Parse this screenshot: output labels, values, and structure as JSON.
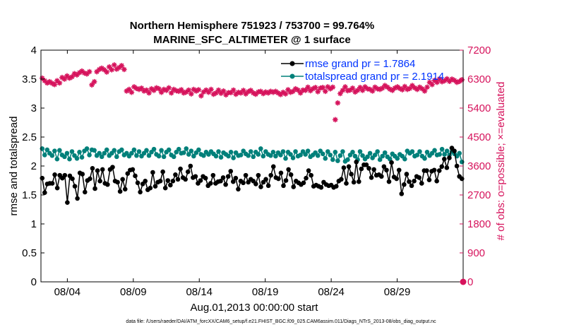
{
  "chart_data": {
    "type": "line",
    "title": "Northern Hemisphere 751923 / 753700 = 99.764%",
    "subtitle": "MARINE_SFC_ALTIMETER @ 1 surface",
    "xlabel": "Aug.01,2013 00:00:00 start",
    "ylabel_left": "rmse and totalspread",
    "ylabel_right": "# of obs: o=possible; ×=evaluated",
    "footnote": "data file: /Users/raeder/DAI/ATM_forcXX/CAM6_setup/f.e21.FHIST_BGC.f09_025.CAM6assim.011/Diags_NTrS_2013-08/obs_diag_output.nc",
    "xlim": [
      1,
      33
    ],
    "ylim_left": [
      0,
      4
    ],
    "ylim_right": [
      0,
      7200
    ],
    "x_ticks": [
      3,
      8,
      13,
      18,
      23,
      28
    ],
    "x_tick_labels": [
      "08/04",
      "08/09",
      "08/14",
      "08/19",
      "08/24",
      "08/29"
    ],
    "y_ticks_left": [
      0,
      0.5,
      1,
      1.5,
      2,
      2.5,
      3,
      3.5,
      4
    ],
    "y_tick_labels_left": [
      "0",
      "0.5",
      "1",
      "1.5",
      "2",
      "2.5",
      "3",
      "3.5",
      "4"
    ],
    "y_ticks_right": [
      0,
      900,
      1800,
      2700,
      3600,
      4500,
      5400,
      6300,
      7200
    ],
    "y_tick_labels_right": [
      "0",
      "900",
      "1800",
      "2700",
      "3600",
      "4500",
      "5400",
      "6300",
      "7200"
    ],
    "grid": false,
    "legend_position": "top-right",
    "colors": {
      "rmse": "#000000",
      "spread": "#00807a",
      "obs": "#d6135c",
      "legend_text": "#0033ff"
    },
    "series": [
      {
        "name": "rmse grand pr = 1.7864",
        "axis": "left",
        "values": [
          1.79,
          1.54,
          1.69,
          1.7,
          1.7,
          1.85,
          1.62,
          1.84,
          1.79,
          1.84,
          1.37,
          1.83,
          1.78,
          1.65,
          1.44,
          1.88,
          1.86,
          1.55,
          1.75,
          1.78,
          1.96,
          1.61,
          1.92,
          1.74,
          1.94,
          1.7,
          1.68,
          1.94,
          1.98,
          1.74,
          1.72,
          1.56,
          1.77,
          1.6,
          1.87,
          1.93,
          1.94,
          1.83,
          1.71,
          1.55,
          1.69,
          1.74,
          1.59,
          1.62,
          1.89,
          1.65,
          1.72,
          1.74,
          1.9,
          1.62,
          1.75,
          1.67,
          1.74,
          1.85,
          1.77,
          1.95,
          1.8,
          1.77,
          1.9,
          2.0,
          1.8,
          1.82,
          1.7,
          1.75,
          1.82,
          1.79,
          1.66,
          1.7,
          1.84,
          1.7,
          1.73,
          1.74,
          1.8,
          1.68,
          1.82,
          1.91,
          1.73,
          1.79,
          1.6,
          1.74,
          1.71,
          1.84,
          1.72,
          1.77,
          1.74,
          1.69,
          1.84,
          1.64,
          1.72,
          1.77,
          1.66,
          1.84,
          1.99,
          1.8,
          1.78,
          1.88,
          1.66,
          1.75,
          1.94,
          1.85,
          1.64,
          1.74,
          1.71,
          1.68,
          1.71,
          1.79,
          1.92,
          1.84,
          1.65,
          1.67,
          1.65,
          1.63,
          1.72,
          1.68,
          1.66,
          1.67,
          1.63,
          1.65,
          1.74,
          1.77,
          1.97,
          1.7,
          1.99,
          1.86,
          1.72,
          2.07,
          1.73,
          1.95,
          2.02,
          2.02,
          1.96,
          1.8,
          1.94,
          1.84,
          1.85,
          1.82,
          1.99,
          1.93,
          1.73,
          2.06,
          1.81,
          1.78,
          1.93,
          1.52,
          1.68,
          1.86,
          1.73,
          1.66,
          1.74,
          1.82,
          1.8,
          1.7,
          1.92,
          1.92,
          1.76,
          1.91,
          1.93,
          1.74,
          1.92,
          1.99,
          2.12,
          1.97,
          2.14,
          2.31,
          2.26,
          2.0,
          1.82,
          1.78
        ]
      },
      {
        "name": "totalspread grand pr = 2.1914",
        "axis": "left",
        "values": [
          2.3,
          2.19,
          2.28,
          2.22,
          2.18,
          2.26,
          2.12,
          2.27,
          2.19,
          2.16,
          2.22,
          2.12,
          2.25,
          2.18,
          2.13,
          2.24,
          2.15,
          2.26,
          2.3,
          2.19,
          2.28,
          2.27,
          2.18,
          2.22,
          2.16,
          2.22,
          2.28,
          2.18,
          2.22,
          2.27,
          2.16,
          2.25,
          2.28,
          2.19,
          2.22,
          2.17,
          2.22,
          2.28,
          2.18,
          2.25,
          2.17,
          2.22,
          2.27,
          2.18,
          2.24,
          2.29,
          2.2,
          2.17,
          2.27,
          2.16,
          2.24,
          2.28,
          2.19,
          2.16,
          2.24,
          2.29,
          2.22,
          2.23,
          2.3,
          2.2,
          2.26,
          2.17,
          2.23,
          2.28,
          2.2,
          2.18,
          2.24,
          2.2,
          2.25,
          2.21,
          2.17,
          2.25,
          2.15,
          2.23,
          2.2,
          2.17,
          2.24,
          2.14,
          2.23,
          2.18,
          2.19,
          2.26,
          2.21,
          2.18,
          2.25,
          2.16,
          2.24,
          2.2,
          2.3,
          2.17,
          2.25,
          2.2,
          2.18,
          2.24,
          2.17,
          2.23,
          2.19,
          2.25,
          2.13,
          2.24,
          2.2,
          2.14,
          2.25,
          2.17,
          2.19,
          2.25,
          2.2,
          2.26,
          2.16,
          2.19,
          2.23,
          2.18,
          2.26,
          2.21,
          2.13,
          2.25,
          2.19,
          2.11,
          2.24,
          2.09,
          2.18,
          2.25,
          2.08,
          2.11,
          2.19,
          2.24,
          2.17,
          2.11,
          2.25,
          2.18,
          2.12,
          2.16,
          2.22,
          2.14,
          2.19,
          2.25,
          2.11,
          2.17,
          2.23,
          2.16,
          2.12,
          2.21,
          2.17,
          2.13,
          2.2,
          2.17,
          2.12,
          2.26,
          2.22,
          2.25,
          2.17,
          2.19,
          2.25,
          2.17,
          2.13,
          2.24,
          2.18,
          2.22,
          2.27,
          2.19,
          2.2,
          2.29,
          2.2,
          2.26,
          2.19,
          2.25,
          2.21,
          2.17,
          2.22,
          2.07
        ]
      },
      {
        "name": "evaluated",
        "axis": "right",
        "values": [
          6330,
          6250,
          6180,
          6220,
          6170,
          6130,
          6250,
          6180,
          6350,
          6300,
          6400,
          6330,
          6370,
          6470,
          6430,
          6500,
          6550,
          6490,
          6460,
          6530,
          6120,
          6220,
          6530,
          6600,
          6640,
          6590,
          6520,
          6680,
          6590,
          6740,
          6610,
          6660,
          6720,
          6600,
          5930,
          5980,
          5890,
          6060,
          6010,
          5980,
          6020,
          5930,
          5960,
          5870,
          6000,
          5950,
          6030,
          6000,
          5890,
          5980,
          5950,
          6030,
          5870,
          5980,
          5940,
          5920,
          5970,
          5870,
          5900,
          5960,
          5840,
          5980,
          5930,
          5970,
          5780,
          5900,
          5960,
          5890,
          5980,
          5830,
          5870,
          5960,
          5860,
          5930,
          5810,
          5880,
          5880,
          5960,
          5830,
          5890,
          5870,
          5950,
          5840,
          5910,
          5950,
          5870,
          5830,
          5900,
          5920,
          5850,
          5900,
          5870,
          5920,
          5890,
          5920,
          5870,
          5820,
          5890,
          5840,
          5970,
          5890,
          5920,
          6000,
          5960,
          5870,
          5960,
          5950,
          6050,
          5940,
          6000,
          6040,
          5910,
          6020,
          6040,
          5920,
          6060,
          6000,
          6050,
          5040,
          5560,
          5850,
          5950,
          6060,
          5940,
          5960,
          6020,
          5900,
          5950,
          6040,
          5950,
          6060,
          6000,
          5980,
          5930,
          6050,
          6000,
          5980,
          6020,
          6100,
          6050,
          5990,
          5950,
          6020,
          6060,
          6010,
          5970,
          6070,
          5980,
          6010,
          6100,
          6030,
          5980,
          6050,
          6000,
          5930,
          6050,
          6200,
          6130,
          6260,
          6200,
          6310,
          6220,
          6250,
          6310,
          6230,
          6300,
          6260,
          6200,
          6230,
          6280
        ]
      },
      {
        "name": "possible",
        "axis": "right",
        "values": [
          0
        ]
      }
    ]
  }
}
